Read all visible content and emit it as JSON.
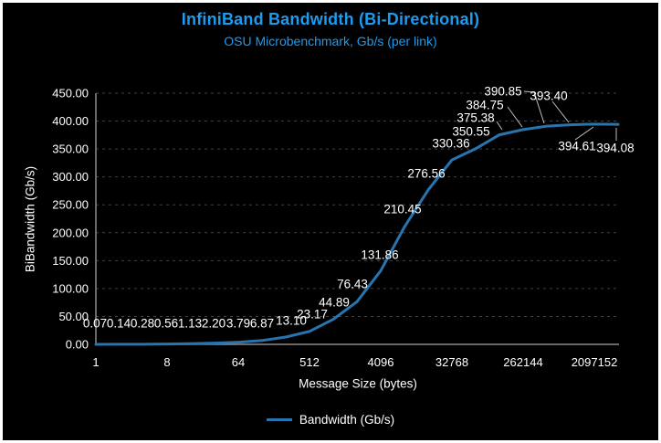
{
  "chart_data": {
    "type": "line",
    "title": "InfiniBand Bandwidth (Bi-Directional)",
    "subtitle": "OSU Microbenchmark, Gb/s (per link)",
    "xlabel": "Message Size (bytes)",
    "ylabel": "BiBandwidth (Gb/s)",
    "x_scale": "log2",
    "x_tick_labels": [
      "1",
      "8",
      "64",
      "512",
      "4096",
      "32768",
      "262144",
      "2097152"
    ],
    "ylim": [
      0,
      450
    ],
    "y_tick_step": 50,
    "y_tick_format": "two-decimal",
    "grid": "horizontal dashed",
    "legend_position": "bottom center",
    "data_labels_visible": true,
    "series": [
      {
        "name": "Bandwidth (Gb/s)",
        "color": "#2874AE",
        "x": [
          1,
          2,
          4,
          8,
          16,
          32,
          64,
          128,
          256,
          512,
          1024,
          2048,
          4096,
          8192,
          16384,
          32768,
          65536,
          131072,
          262144,
          524288,
          1048576,
          2097152,
          4194304
        ],
        "values": [
          0.07,
          0.14,
          0.28,
          0.56,
          1.13,
          2.2,
          3.79,
          6.87,
          13.1,
          23.17,
          44.89,
          76.43,
          131.86,
          210.45,
          276.56,
          330.36,
          350.55,
          375.38,
          384.75,
          390.85,
          393.4,
          394.61,
          394.08
        ]
      }
    ]
  },
  "colors": {
    "background": "#000000",
    "frame_border": "#FFFFFF",
    "accent_blue": "#1D9BF0",
    "line_blue": "#2874AE",
    "text_white": "#FFFFFF",
    "gridline": "#424242",
    "axis_line": "#8C8C8C",
    "leader_line": "#BDBDBD"
  }
}
